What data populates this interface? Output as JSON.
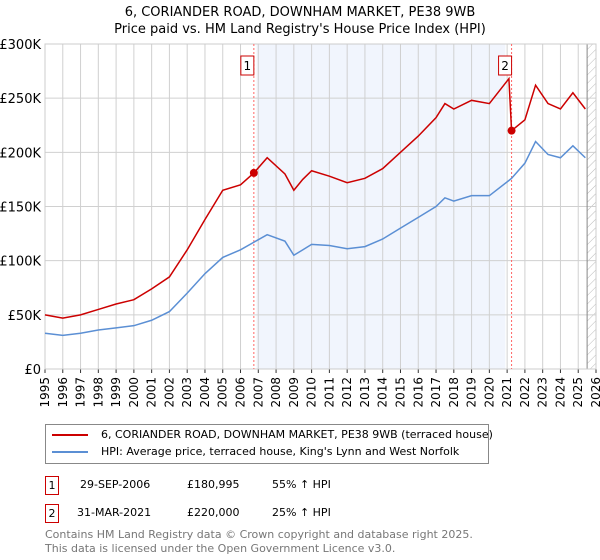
{
  "chart_data": {
    "type": "line",
    "title": "6, CORIANDER ROAD, DOWNHAM MARKET, PE38 9WB",
    "subtitle": "Price paid vs. HM Land Registry's House Price Index (HPI)",
    "xlim": [
      1995,
      2026
    ],
    "ylim": [
      0,
      300000
    ],
    "yticks": [
      0,
      50000,
      100000,
      150000,
      200000,
      250000,
      300000
    ],
    "ytick_labels": [
      "£0",
      "£50K",
      "£100K",
      "£150K",
      "£200K",
      "£250K",
      "£300K"
    ],
    "xticks": [
      "1995",
      "1996",
      "1997",
      "1998",
      "1999",
      "2000",
      "2001",
      "2002",
      "2003",
      "2004",
      "2005",
      "2006",
      "2007",
      "2008",
      "2009",
      "2010",
      "2011",
      "2012",
      "2013",
      "2014",
      "2015",
      "2016",
      "2017",
      "2018",
      "2019",
      "2020",
      "2021",
      "2022",
      "2023",
      "2024",
      "2025",
      "2026"
    ],
    "grid": true,
    "shaded_range": [
      2006.9,
      2020.9
    ],
    "hatched_from": 2025.5,
    "series": [
      {
        "name": "6, CORIANDER ROAD, DOWNHAM MARKET, PE38 9WB (terraced house)",
        "color": "#cc0000",
        "x": [
          1995,
          1996,
          1997,
          1998,
          1999,
          2000,
          2001,
          2002,
          2003,
          2004,
          2005,
          2006,
          2006.75,
          2007.5,
          2008.5,
          2009,
          2009.5,
          2010,
          2011,
          2012,
          2013,
          2014,
          2015,
          2016,
          2017,
          2017.5,
          2018,
          2019,
          2020,
          2021.1,
          2021.25,
          2022,
          2022.6,
          2023.3,
          2024,
          2024.7,
          2025.4
        ],
        "values": [
          50000,
          47000,
          50000,
          55000,
          60000,
          64000,
          74000,
          85000,
          110000,
          138000,
          165000,
          170000,
          180995,
          195000,
          180000,
          165000,
          175000,
          183000,
          178000,
          172000,
          176000,
          185000,
          200000,
          215000,
          232000,
          245000,
          240000,
          248000,
          245000,
          268000,
          220000,
          230000,
          262000,
          245000,
          240000,
          255000,
          240000
        ]
      },
      {
        "name": "HPI: Average price, terraced house, King's Lynn and West Norfolk",
        "color": "#5b8fd4",
        "x": [
          1995,
          1996,
          1997,
          1998,
          1999,
          2000,
          2001,
          2002,
          2003,
          2004,
          2005,
          2006,
          2006.75,
          2007.5,
          2008.5,
          2009,
          2009.5,
          2010,
          2011,
          2012,
          2013,
          2014,
          2015,
          2016,
          2017,
          2017.5,
          2018,
          2019,
          2020,
          2021.1,
          2021.25,
          2022,
          2022.6,
          2023.3,
          2024,
          2024.7,
          2025.4
        ],
        "values": [
          33000,
          31000,
          33000,
          36000,
          38000,
          40000,
          45000,
          53000,
          70000,
          88000,
          103000,
          110000,
          117000,
          124000,
          118000,
          105000,
          110000,
          115000,
          114000,
          111000,
          113000,
          120000,
          130000,
          140000,
          150000,
          158000,
          155000,
          160000,
          160000,
          174000,
          176000,
          190000,
          210000,
          198000,
          195000,
          206000,
          195000
        ]
      }
    ],
    "annotations": [
      {
        "label": "1",
        "x": 2006.75,
        "value": 180995,
        "date": "29-SEP-2006",
        "price": "£180,995",
        "hpi": "55% ↑ HPI"
      },
      {
        "label": "2",
        "x": 2021.25,
        "value": 220000,
        "date": "31-MAR-2021",
        "price": "£220,000",
        "hpi": "25% ↑ HPI"
      }
    ]
  },
  "footer": [
    "Contains HM Land Registry data © Crown copyright and database right 2025.",
    "This data is licensed under the Open Government Licence v3.0."
  ]
}
